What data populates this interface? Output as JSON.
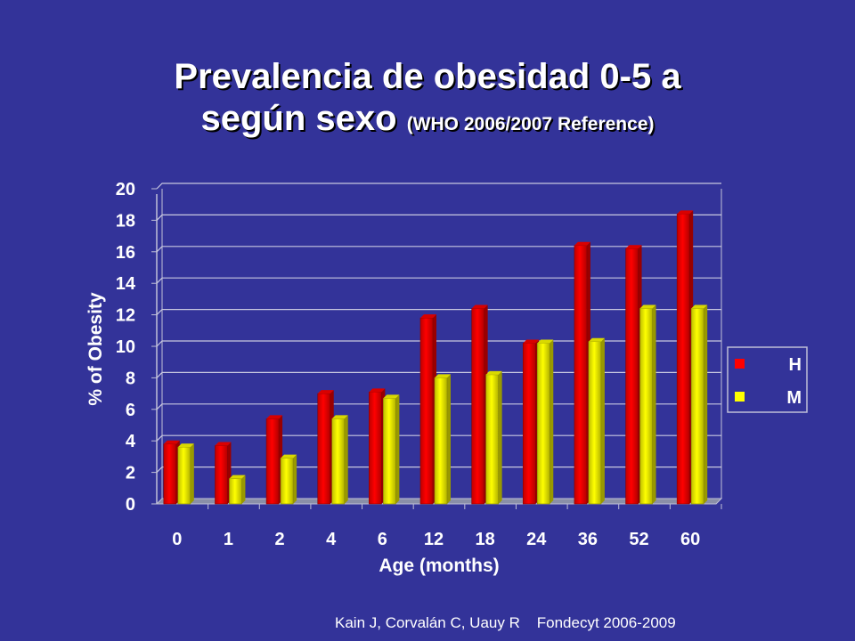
{
  "slide": {
    "title_line1": "Prevalencia de obesidad 0-5 a",
    "title_line2_main": "según sexo",
    "title_line2_sub": "(WHO 2006/2007 Reference)",
    "footer": "Kain J, Corvalán C, Uauy R    Fondecyt 2006-2009"
  },
  "colors": {
    "background": "#333399",
    "series_H": "#ff0000",
    "series_M": "#ffff00",
    "text": "#ffffff"
  },
  "chart_data": {
    "type": "bar",
    "xlabel": "Age (months)",
    "ylabel": "% of Obesity",
    "ylim": [
      0,
      20
    ],
    "yticks": [
      0,
      2,
      4,
      6,
      8,
      10,
      12,
      14,
      16,
      18,
      20
    ],
    "grid": true,
    "legend_position": "right",
    "categories": [
      "0",
      "1",
      "2",
      "4",
      "6",
      "12",
      "18",
      "24",
      "36",
      "52",
      "60"
    ],
    "series": [
      {
        "name": "H",
        "color": "#ff0000",
        "values": [
          3.8,
          3.7,
          5.4,
          7.0,
          7.1,
          11.8,
          12.4,
          10.2,
          16.4,
          16.2,
          18.4
        ]
      },
      {
        "name": "M",
        "color": "#ffff00",
        "values": [
          3.6,
          1.6,
          2.9,
          5.4,
          6.7,
          8.0,
          8.2,
          10.2,
          10.3,
          12.4,
          12.4
        ]
      }
    ]
  }
}
